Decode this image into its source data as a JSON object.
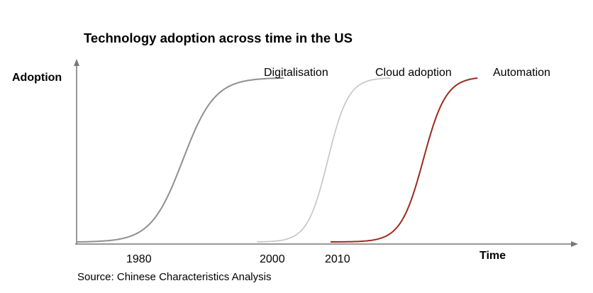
{
  "chart_data": {
    "type": "line",
    "title": "Technology adoption across time in the US",
    "ylabel": "Adoption",
    "xlabel": "Time",
    "source": "Source: Chinese Characteristics Analysis",
    "x_ticks": [
      "1980",
      "2000",
      "2010"
    ],
    "grid": false,
    "series": [
      {
        "name": "Digitalisation",
        "color": "#8f8f8f",
        "x_start": 1970,
        "x_end": 2001,
        "x_mid": 1985.9
      },
      {
        "name": "Cloud adoption",
        "color": "#c4c4c4",
        "x_start": 1997,
        "x_end": 2017,
        "x_mid": 2007.6
      },
      {
        "name": "Automation",
        "color": "#9c2a1f",
        "x_start": 2008,
        "x_end": 2030,
        "x_mid": 2021.9
      }
    ]
  }
}
